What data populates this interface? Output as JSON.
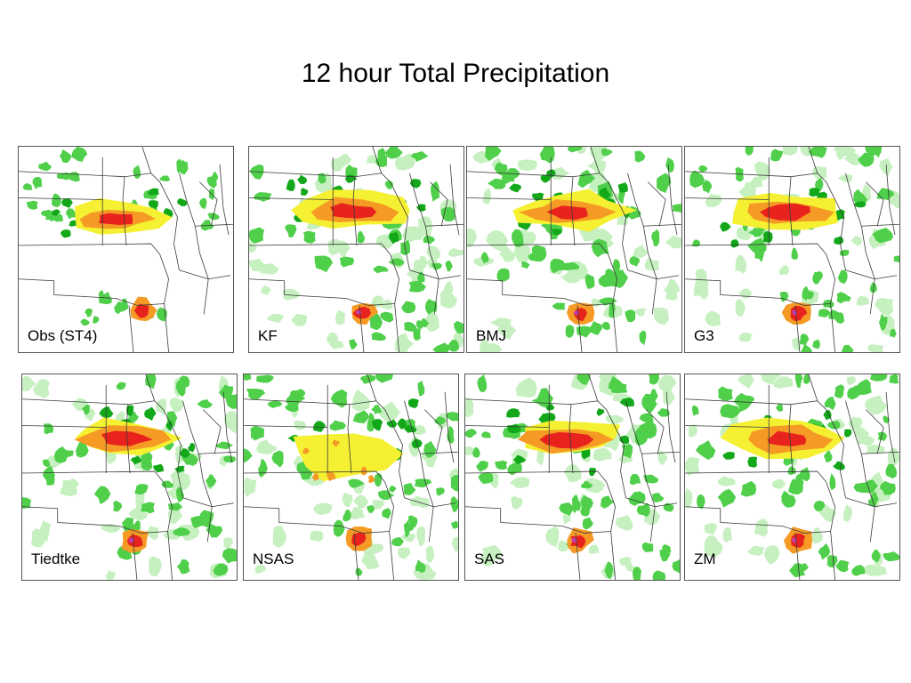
{
  "slide": {
    "title": "12 hour Total Precipitation"
  },
  "panels": [
    {
      "label": "Obs (ST4)",
      "style": "obs"
    },
    {
      "label": "KF",
      "style": "model"
    },
    {
      "label": "BMJ",
      "style": "model"
    },
    {
      "label": "G3",
      "style": "model"
    },
    {
      "label": "Tiedtke",
      "style": "model"
    },
    {
      "label": "NSAS",
      "style": "nsas"
    },
    {
      "label": "SAS",
      "style": "model"
    },
    {
      "label": "ZM",
      "style": "model"
    }
  ],
  "colors": {
    "light_green": "#c6f0c0",
    "green": "#4fcf4a",
    "dark_green": "#12a81a",
    "yellow": "#f5f031",
    "orange": "#f59a25",
    "red": "#e8231d",
    "magenta": "#c43fb4",
    "border": "#3a3a3a"
  }
}
